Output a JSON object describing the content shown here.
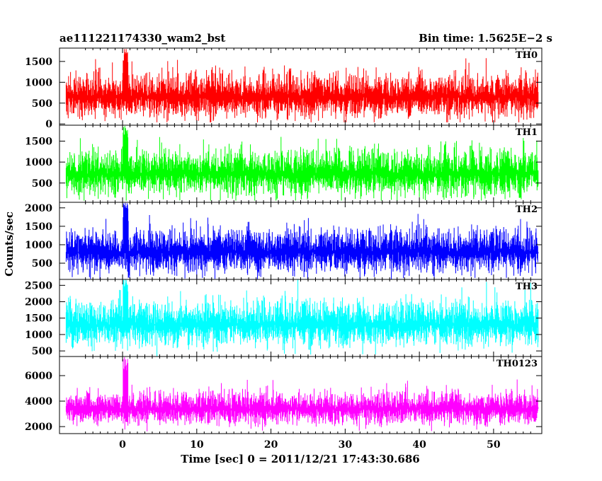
{
  "header": {
    "left": "ae111221174330_wam2_bst",
    "right": "Bin time: 1.5625E−2 s"
  },
  "chart_data": {
    "type": "line",
    "title": "ae111221174330_wam2_bst",
    "subtitle": "Bin time: 1.5625E−2 s",
    "xlabel": "Time [sec] 0 = 2011/12/21 17:43:30.686",
    "ylabel": "Counts/sec",
    "xlim": [
      -8.5,
      56.5
    ],
    "x_ticks": [
      0,
      10,
      20,
      30,
      40,
      50
    ],
    "x_tick_labels": [
      "0",
      "10",
      "20",
      "30",
      "40",
      "50"
    ],
    "data_x_range": [
      -7.6,
      56.0
    ],
    "grid": false,
    "panels": [
      {
        "name": "TH0",
        "color": "#ff0000",
        "ylim": [
          -30,
          1820
        ],
        "y_ticks": [
          0,
          500,
          1000,
          1500
        ],
        "y_tick_labels": [
          "0",
          "500",
          "1000",
          "1500"
        ],
        "mean": 650,
        "noise": 290,
        "floor": 40,
        "burst_peak": 1820
      },
      {
        "name": "TH1",
        "color": "#00ff00",
        "ylim": [
          40,
          1880
        ],
        "y_ticks": [
          500,
          1000,
          1500
        ],
        "y_tick_labels": [
          "500",
          "1000",
          "1500"
        ],
        "mean": 720,
        "noise": 300,
        "floor": 80,
        "burst_peak": 1880
      },
      {
        "name": "TH2",
        "color": "#0000ff",
        "ylim": [
          60,
          2150
        ],
        "y_ticks": [
          500,
          1000,
          1500,
          2000
        ],
        "y_tick_labels": [
          "500",
          "1000",
          "1500",
          "2000"
        ],
        "mean": 800,
        "noise": 330,
        "floor": 60,
        "burst_peak": 2150
      },
      {
        "name": "TH3",
        "color": "#00ffff",
        "ylim": [
          330,
          2680
        ],
        "y_ticks": [
          500,
          1000,
          1500,
          2000,
          2500
        ],
        "y_tick_labels": [
          "500",
          "1000",
          "1500",
          "2000",
          "2500"
        ],
        "mean": 1300,
        "noise": 380,
        "floor": 330,
        "burst_peak": 2680
      },
      {
        "name": "TH0123",
        "color": "#ff00ff",
        "ylim": [
          1450,
          7500
        ],
        "y_ticks": [
          2000,
          4000,
          6000
        ],
        "y_tick_labels": [
          "2000",
          "4000",
          "6000"
        ],
        "mean": 3400,
        "noise": 700,
        "floor": 1450,
        "burst_peak": 7500
      }
    ]
  }
}
